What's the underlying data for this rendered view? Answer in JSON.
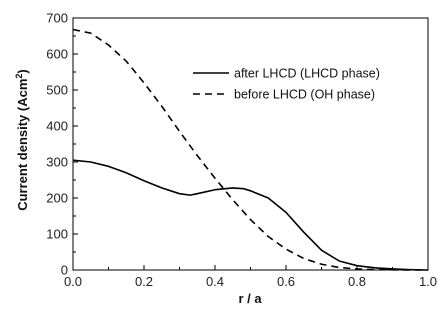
{
  "chart_data": {
    "type": "line",
    "xlabel": "r / a",
    "ylabel_main": "Current density (Acm",
    "ylabel_sup": "2",
    "ylabel_end": ")",
    "xlim": [
      0.0,
      1.0
    ],
    "ylim": [
      0,
      700
    ],
    "x_ticks": [
      0.0,
      0.2,
      0.4,
      0.6,
      0.8,
      1.0
    ],
    "x_tick_labels": [
      "0.0",
      "0.2",
      "0.4",
      "0.6",
      "0.8",
      "1.0"
    ],
    "y_ticks": [
      0,
      100,
      200,
      300,
      400,
      500,
      600,
      700
    ],
    "y_tick_labels": [
      "0",
      "100",
      "200",
      "300",
      "400",
      "500",
      "600",
      "700"
    ],
    "grid": false,
    "legend_position": "top-right",
    "series": [
      {
        "name": "after LHCD (LHCD phase)",
        "style": "solid",
        "color": "#000000",
        "x": [
          0.0,
          0.05,
          0.1,
          0.15,
          0.2,
          0.25,
          0.3,
          0.33,
          0.35,
          0.4,
          0.45,
          0.48,
          0.5,
          0.55,
          0.6,
          0.65,
          0.7,
          0.75,
          0.8,
          0.85,
          0.9,
          0.95,
          1.0
        ],
        "y": [
          305,
          300,
          288,
          270,
          248,
          228,
          212,
          208,
          212,
          223,
          228,
          226,
          220,
          200,
          160,
          105,
          55,
          25,
          12,
          6,
          3,
          1,
          0
        ]
      },
      {
        "name": "before LHCD (OH phase)",
        "style": "dashed",
        "color": "#000000",
        "x": [
          0.0,
          0.05,
          0.1,
          0.15,
          0.2,
          0.25,
          0.3,
          0.35,
          0.4,
          0.45,
          0.5,
          0.55,
          0.6,
          0.65,
          0.7,
          0.75,
          0.8,
          0.85,
          0.9,
          0.95,
          1.0
        ],
        "y": [
          668,
          658,
          625,
          580,
          520,
          455,
          385,
          318,
          255,
          195,
          140,
          93,
          58,
          32,
          16,
          7,
          3,
          1,
          0.5,
          0,
          0
        ]
      }
    ]
  }
}
